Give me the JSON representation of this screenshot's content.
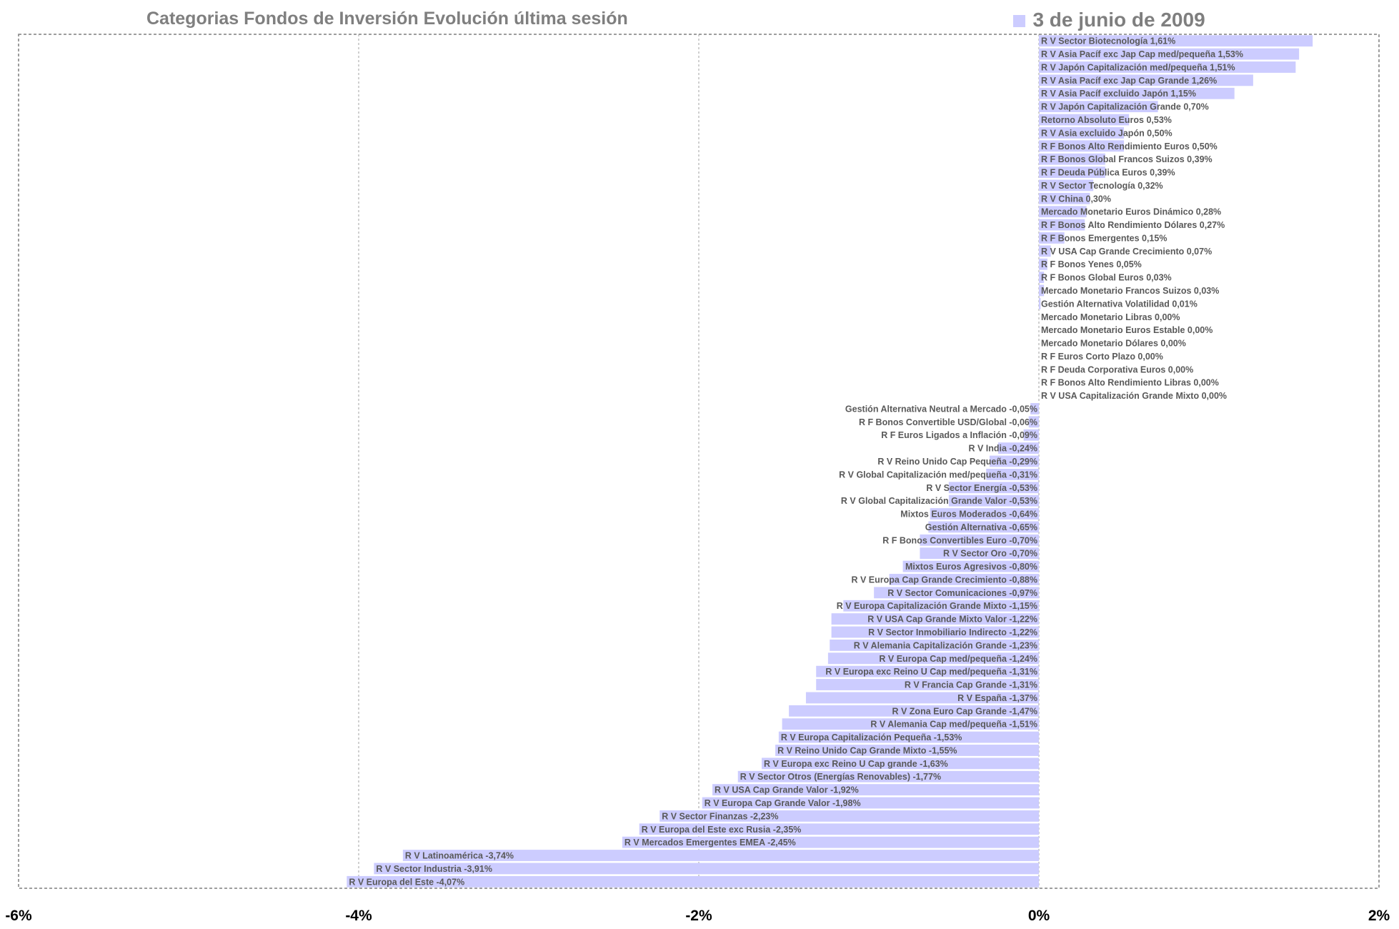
{
  "chart_data": {
    "type": "bar",
    "orientation": "horizontal",
    "title": "Categorias Fondos de Inversión Evolución última sesión",
    "legend": {
      "label": "3 de junio de 2009",
      "position": "top-right"
    },
    "xlim": [
      -6,
      2
    ],
    "xticks": [
      "-6%",
      "-4%",
      "-2%",
      "0%",
      "2%"
    ],
    "xtick_values": [
      -6,
      -4,
      -2,
      0,
      2
    ],
    "grid": true,
    "colors": {
      "bar": "#ccccff",
      "label": "#595959",
      "grid": "#a0a0a0",
      "title": "#7f7f7f"
    },
    "categories": [
      "R V Sector Biotecnología 1,61%",
      "R V Asia Pacíf exc Jap Cap med/pequeña 1,53%",
      "R V Japón Capitalización med/pequeña 1,51%",
      "R V Asia Pacíf exc Jap Cap Grande 1,26%",
      "R V Asia Pacíf excluido Japón 1,15%",
      "R V Japón Capitalización Grande 0,70%",
      "Retorno Absoluto Euros 0,53%",
      "R V Asia excluido Japón 0,50%",
      "R F Bonos Alto Rendimiento Euros 0,50%",
      "R F Bonos Global Francos Suizos 0,39%",
      "R F Deuda Pública Euros 0,39%",
      "R V Sector Tecnología 0,32%",
      "R V China 0,30%",
      "Mercado Monetario Euros Dinámico 0,28%",
      "R F Bonos Alto Rendimiento Dólares 0,27%",
      "R F Bonos Emergentes 0,15%",
      "R V USA Cap Grande Crecimiento 0,07%",
      "R F Bonos Yenes 0,05%",
      "R F Bonos Global Euros 0,03%",
      "Mercado Monetario Francos Suizos 0,03%",
      "Gestión Alternativa Volatilidad 0,01%",
      "Mercado Monetario Libras 0,00%",
      "Mercado Monetario Euros Estable 0,00%",
      "Mercado Monetario Dólares 0,00%",
      "R F Euros Corto Plazo 0,00%",
      "R F Deuda Corporativa Euros 0,00%",
      "R F Bonos Alto Rendimiento Libras 0,00%",
      "R V USA Capitalización Grande Mixto 0,00%",
      "Gestión Alternativa Neutral a Mercado -0,05%",
      "R F Bonos Convertible USD/Global -0,06%",
      "R F Euros Ligados a Inflación -0,09%",
      "R V India -0,24%",
      "R V Reino Unido Cap Pequeña -0,29%",
      "R V Global Capitalización med/pequeña -0,31%",
      "R V Sector Energía -0,53%",
      "R V Global Capitalización Grande Valor -0,53%",
      "Mixtos Euros Moderados -0,64%",
      "Gestión Alternativa -0,65%",
      "R F Bonos Convertibles Euro -0,70%",
      "R V Sector Oro -0,70%",
      "Mixtos Euros Agresivos -0,80%",
      "R V Europa Cap Grande Crecimiento -0,88%",
      "R V Sector Comunicaciones -0,97%",
      "R V Europa Capitalización Grande Mixto -1,15%",
      "R V USA Cap Grande Mixto Valor -1,22%",
      "R V Sector Inmobiliario Indirecto -1,22%",
      "R V Alemania Capitalización Grande -1,23%",
      "R V Europa Cap med/pequeña -1,24%",
      "R V Europa exc Reino U Cap med/pequeña -1,31%",
      "R V Francia Cap Grande -1,31%",
      "R V España -1,37%",
      "R V Zona Euro Cap Grande -1,47%",
      "R V Alemania Cap med/pequeña -1,51%",
      "R V Europa Capitalización Pequeña -1,53%",
      "R V Reino Unido Cap Grande Mixto -1,55%",
      "R V Europa exc Reino U Cap grande -1,63%",
      "R V Sector Otros (Energías Renovables) -1,77%",
      "R V USA Cap Grande Valor -1,92%",
      "R V Europa Cap Grande Valor -1,98%",
      "R V Sector Finanzas -2,23%",
      "R V Europa del Este exc Rusia -2,35%",
      "R V Mercados Emergentes EMEA -2,45%",
      "R V Latinoamérica -3,74%",
      "R V Sector Industria -3,91%",
      "R V Europa del Este -4,07%"
    ],
    "series": [
      {
        "name": "3 de junio de 2009",
        "values": [
          1.61,
          1.53,
          1.51,
          1.26,
          1.15,
          0.7,
          0.53,
          0.5,
          0.5,
          0.39,
          0.39,
          0.32,
          0.3,
          0.28,
          0.27,
          0.15,
          0.07,
          0.05,
          0.03,
          0.03,
          0.01,
          0.0,
          0.0,
          0.0,
          0.0,
          0.0,
          0.0,
          0.0,
          -0.05,
          -0.06,
          -0.09,
          -0.24,
          -0.29,
          -0.31,
          -0.53,
          -0.53,
          -0.64,
          -0.65,
          -0.7,
          -0.7,
          -0.8,
          -0.88,
          -0.97,
          -1.15,
          -1.22,
          -1.22,
          -1.23,
          -1.24,
          -1.31,
          -1.31,
          -1.37,
          -1.47,
          -1.51,
          -1.53,
          -1.55,
          -1.63,
          -1.77,
          -1.92,
          -1.98,
          -2.23,
          -2.35,
          -2.45,
          -3.74,
          -3.91,
          -4.07
        ]
      }
    ]
  }
}
